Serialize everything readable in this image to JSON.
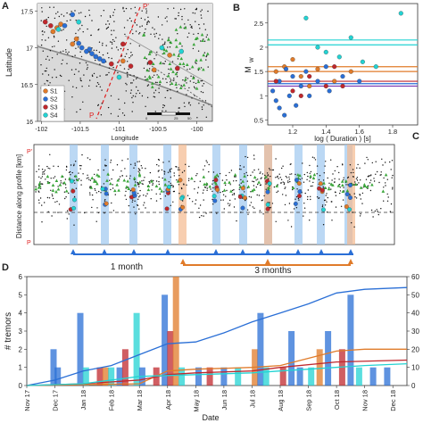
{
  "panel_a": {
    "letter": "A",
    "xlabel": "Longitude",
    "ylabel": "Latitude",
    "xticks": [
      "-102",
      "-101.5",
      "-101",
      "-100.5",
      "-100"
    ],
    "yticks": [
      "17.5",
      "17",
      "16.5",
      "16"
    ],
    "p_top": "P'",
    "p_bottom": "P",
    "scale_labels": [
      "0",
      "25",
      "50"
    ],
    "legend": [
      {
        "name": "S1",
        "color": "#e07b2a"
      },
      {
        "name": "S2",
        "color": "#2a6fd6"
      },
      {
        "name": "S3",
        "color": "#c0282d"
      },
      {
        "name": "S4",
        "color": "#23d3d3"
      }
    ]
  },
  "panel_b": {
    "letter": "B",
    "xlabel": "log ( Duration ) [s]",
    "ylabel": "M",
    "ylabel_sub": "W",
    "xticks": [
      "1.2",
      "1.4",
      "1.6",
      "1.8"
    ],
    "yticks": [
      "0.5",
      "1",
      "1.5",
      "2",
      "2.5"
    ]
  },
  "panel_c": {
    "letter": "C",
    "ylabel": "Distance along profile [km]",
    "top_label": "P'",
    "bottom_label": "P"
  },
  "timeline": {
    "one_month": "1 month",
    "three_months": "3 months"
  },
  "panel_d": {
    "letter": "D",
    "ylabel": "# tremors",
    "xlabel": "Date",
    "yticks_left": [
      "0",
      "1",
      "2",
      "3",
      "4",
      "5",
      "6"
    ],
    "yticks_right": [
      "0",
      "10",
      "20",
      "30",
      "40",
      "50",
      "60"
    ],
    "xticks": [
      "Nov 17",
      "Dec 17",
      "Jan 18",
      "Feb 18",
      "Mar 18",
      "Apr 18",
      "May 18",
      "Jun 18",
      "Jul 18",
      "Aug 18",
      "Sep 18",
      "Oct 18",
      "Nov 18",
      "Dec 18"
    ]
  },
  "chart_data": [
    {
      "type": "scatter",
      "panel": "A",
      "xlabel": "Longitude",
      "ylabel": "Latitude",
      "xlim": [
        -102.05,
        -99.8
      ],
      "ylim": [
        16.0,
        17.6
      ],
      "series": [
        {
          "name": "S1",
          "color": "#e07b2a",
          "points": [
            [
              -101.75,
              17.32
            ],
            [
              -101.8,
              17.27
            ],
            [
              -101.85,
              17.22
            ],
            [
              -101.55,
              17.12
            ],
            [
              -101.6,
              17.05
            ],
            [
              -100.95,
              16.82
            ],
            [
              -100.35,
              16.9
            ],
            [
              -100.55,
              16.7
            ]
          ]
        },
        {
          "name": "S2",
          "color": "#2a6fd6",
          "points": [
            [
              -101.7,
              17.3
            ],
            [
              -101.48,
              17.0
            ],
            [
              -101.42,
              16.95
            ],
            [
              -101.35,
              16.92
            ],
            [
              -101.3,
              16.88
            ],
            [
              -101.52,
              17.06
            ],
            [
              -101.6,
              17.45
            ],
            [
              -101.38,
              16.98
            ],
            [
              -101.25,
              16.85
            ],
            [
              -101.2,
              16.82
            ]
          ]
        },
        {
          "name": "S3",
          "color": "#c0282d",
          "points": [
            [
              -101.95,
              17.35
            ],
            [
              -101.88,
              17.3
            ],
            [
              -100.85,
              16.75
            ],
            [
              -100.6,
              16.8
            ],
            [
              -101.1,
              16.78
            ],
            [
              -100.25,
              16.72
            ],
            [
              -100.95,
              17.05
            ]
          ]
        },
        {
          "name": "S4",
          "color": "#23d3d3",
          "points": [
            [
              -101.78,
              17.25
            ],
            [
              -101.52,
              17.35
            ],
            [
              -100.45,
              17.0
            ],
            [
              -100.2,
              16.95
            ],
            [
              -101.0,
              16.6
            ]
          ]
        }
      ]
    },
    {
      "type": "scatter",
      "panel": "B",
      "xlabel": "log ( Duration ) [s]",
      "ylabel": "Mw",
      "xlim": [
        1.05,
        1.95
      ],
      "ylim": [
        0.4,
        2.9
      ],
      "series": [
        {
          "name": "S1",
          "color": "#e07b2a",
          "points": [
            [
              1.1,
              1.5
            ],
            [
              1.15,
              1.6
            ],
            [
              1.25,
              1.4
            ],
            [
              1.35,
              1.55
            ],
            [
              1.45,
              1.3
            ],
            [
              1.55,
              1.5
            ],
            [
              1.3,
              1.2
            ],
            [
              1.2,
              1.75
            ]
          ]
        },
        {
          "name": "S2",
          "color": "#2a6fd6",
          "points": [
            [
              1.08,
              1.1
            ],
            [
              1.1,
              0.9
            ],
            [
              1.12,
              1.3
            ],
            [
              1.15,
              0.6
            ],
            [
              1.18,
              1.0
            ],
            [
              1.2,
              1.4
            ],
            [
              1.22,
              0.8
            ],
            [
              1.25,
              1.2
            ],
            [
              1.28,
              1.5
            ],
            [
              1.3,
              1.0
            ],
            [
              1.35,
              1.3
            ],
            [
              1.4,
              1.6
            ],
            [
              1.42,
              1.1
            ],
            [
              1.5,
              1.4
            ],
            [
              1.6,
              1.3
            ],
            [
              1.12,
              0.75
            ],
            [
              1.16,
              1.55
            ]
          ]
        },
        {
          "name": "S3",
          "color": "#c0282d",
          "points": [
            [
              1.1,
              1.3
            ],
            [
              1.2,
              1.1
            ],
            [
              1.3,
              1.4
            ],
            [
              1.4,
              1.2
            ],
            [
              1.45,
              1.6
            ],
            [
              1.25,
              1.0
            ],
            [
              1.5,
              1.2
            ]
          ]
        },
        {
          "name": "S4",
          "color": "#23d3d3",
          "points": [
            [
              1.28,
              2.6
            ],
            [
              1.85,
              2.7
            ],
            [
              1.55,
              2.2
            ],
            [
              1.4,
              1.9
            ],
            [
              1.62,
              1.7
            ],
            [
              1.35,
              2.0
            ],
            [
              1.7,
              1.6
            ],
            [
              1.48,
              1.8
            ]
          ]
        }
      ],
      "hlines": [
        {
          "y": 2.15,
          "color": "#23d3d3"
        },
        {
          "y": 2.05,
          "color": "#23d3d3"
        },
        {
          "y": 1.6,
          "color": "#e07b2a"
        },
        {
          "y": 1.5,
          "color": "#e07b2a"
        },
        {
          "y": 1.3,
          "color": "#c0282d"
        },
        {
          "y": 1.25,
          "color": "#2a6fd6"
        },
        {
          "y": 1.2,
          "color": "#7d3fb5"
        }
      ]
    },
    {
      "type": "bar",
      "panel": "D",
      "xlabel": "Date",
      "ylabel": "# tremors",
      "xlim": [
        0,
        13.5
      ],
      "ylim": [
        0,
        6
      ],
      "ylim_right": [
        0,
        60
      ],
      "bars": [
        {
          "x": 0.95,
          "value": 2,
          "color": "#2a6fd6"
        },
        {
          "x": 1.1,
          "value": 1,
          "color": "#2a6fd6"
        },
        {
          "x": 1.9,
          "value": 4,
          "color": "#2a6fd6"
        },
        {
          "x": 2.1,
          "value": 1,
          "color": "#23d3d3"
        },
        {
          "x": 2.6,
          "value": 1,
          "color": "#c0282d"
        },
        {
          "x": 2.8,
          "value": 1,
          "color": "#e07b2a"
        },
        {
          "x": 3.0,
          "value": 1,
          "color": "#23d3d3"
        },
        {
          "x": 3.3,
          "value": 1,
          "color": "#2a6fd6"
        },
        {
          "x": 3.5,
          "value": 2,
          "color": "#c0282d"
        },
        {
          "x": 3.9,
          "value": 4,
          "color": "#23d3d3"
        },
        {
          "x": 4.1,
          "value": 1,
          "color": "#2a6fd6"
        },
        {
          "x": 4.6,
          "value": 1,
          "color": "#c0282d"
        },
        {
          "x": 4.9,
          "value": 5,
          "color": "#2a6fd6"
        },
        {
          "x": 5.1,
          "value": 3,
          "color": "#c0282d"
        },
        {
          "x": 5.3,
          "value": 6,
          "color": "#e07b2a"
        },
        {
          "x": 5.5,
          "value": 1,
          "color": "#23d3d3"
        },
        {
          "x": 6.1,
          "value": 1,
          "color": "#2a6fd6"
        },
        {
          "x": 6.5,
          "value": 1,
          "color": "#c0282d"
        },
        {
          "x": 7.0,
          "value": 1,
          "color": "#2a6fd6"
        },
        {
          "x": 7.5,
          "value": 1,
          "color": "#23d3d3"
        },
        {
          "x": 8.1,
          "value": 2,
          "color": "#e07b2a"
        },
        {
          "x": 8.3,
          "value": 4,
          "color": "#2a6fd6"
        },
        {
          "x": 8.5,
          "value": 1,
          "color": "#23d3d3"
        },
        {
          "x": 9.1,
          "value": 1,
          "color": "#c0282d"
        },
        {
          "x": 9.4,
          "value": 3,
          "color": "#2a6fd6"
        },
        {
          "x": 9.7,
          "value": 1,
          "color": "#2a6fd6"
        },
        {
          "x": 10.1,
          "value": 1,
          "color": "#23d3d3"
        },
        {
          "x": 10.4,
          "value": 2,
          "color": "#e07b2a"
        },
        {
          "x": 10.7,
          "value": 3,
          "color": "#2a6fd6"
        },
        {
          "x": 11.2,
          "value": 2,
          "color": "#c0282d"
        },
        {
          "x": 11.5,
          "value": 5,
          "color": "#2a6fd6"
        },
        {
          "x": 11.8,
          "value": 1,
          "color": "#23d3d3"
        },
        {
          "x": 12.3,
          "value": 1,
          "color": "#2a6fd6"
        },
        {
          "x": 12.8,
          "value": 1,
          "color": "#2a6fd6"
        }
      ],
      "cumulative": [
        {
          "name": "S2",
          "color": "#2a6fd6",
          "x": [
            0,
            1,
            2,
            3,
            4,
            5,
            6,
            7,
            8,
            9,
            10,
            11,
            12,
            13.5
          ],
          "values": [
            0,
            3,
            8,
            11,
            17,
            23,
            24,
            29,
            35,
            40,
            45,
            51,
            53,
            54
          ]
        },
        {
          "name": "S1",
          "color": "#e07b2a",
          "x": [
            0,
            4,
            5,
            6,
            8,
            9,
            10,
            11,
            12,
            13.5
          ],
          "values": [
            0,
            1,
            8,
            9,
            10,
            11,
            15,
            19,
            20,
            20
          ]
        },
        {
          "name": "S3",
          "color": "#c0282d",
          "x": [
            0,
            2,
            4,
            5,
            6,
            8,
            9,
            11,
            13.5
          ],
          "values": [
            0,
            1,
            3,
            6,
            7,
            8,
            10,
            13,
            14
          ]
        },
        {
          "name": "S4",
          "color": "#23d3d3",
          "x": [
            0,
            2,
            4,
            6,
            8,
            9,
            10,
            12,
            13.5
          ],
          "values": [
            0,
            1,
            5,
            6,
            7,
            8,
            9,
            11,
            12
          ]
        }
      ]
    }
  ]
}
